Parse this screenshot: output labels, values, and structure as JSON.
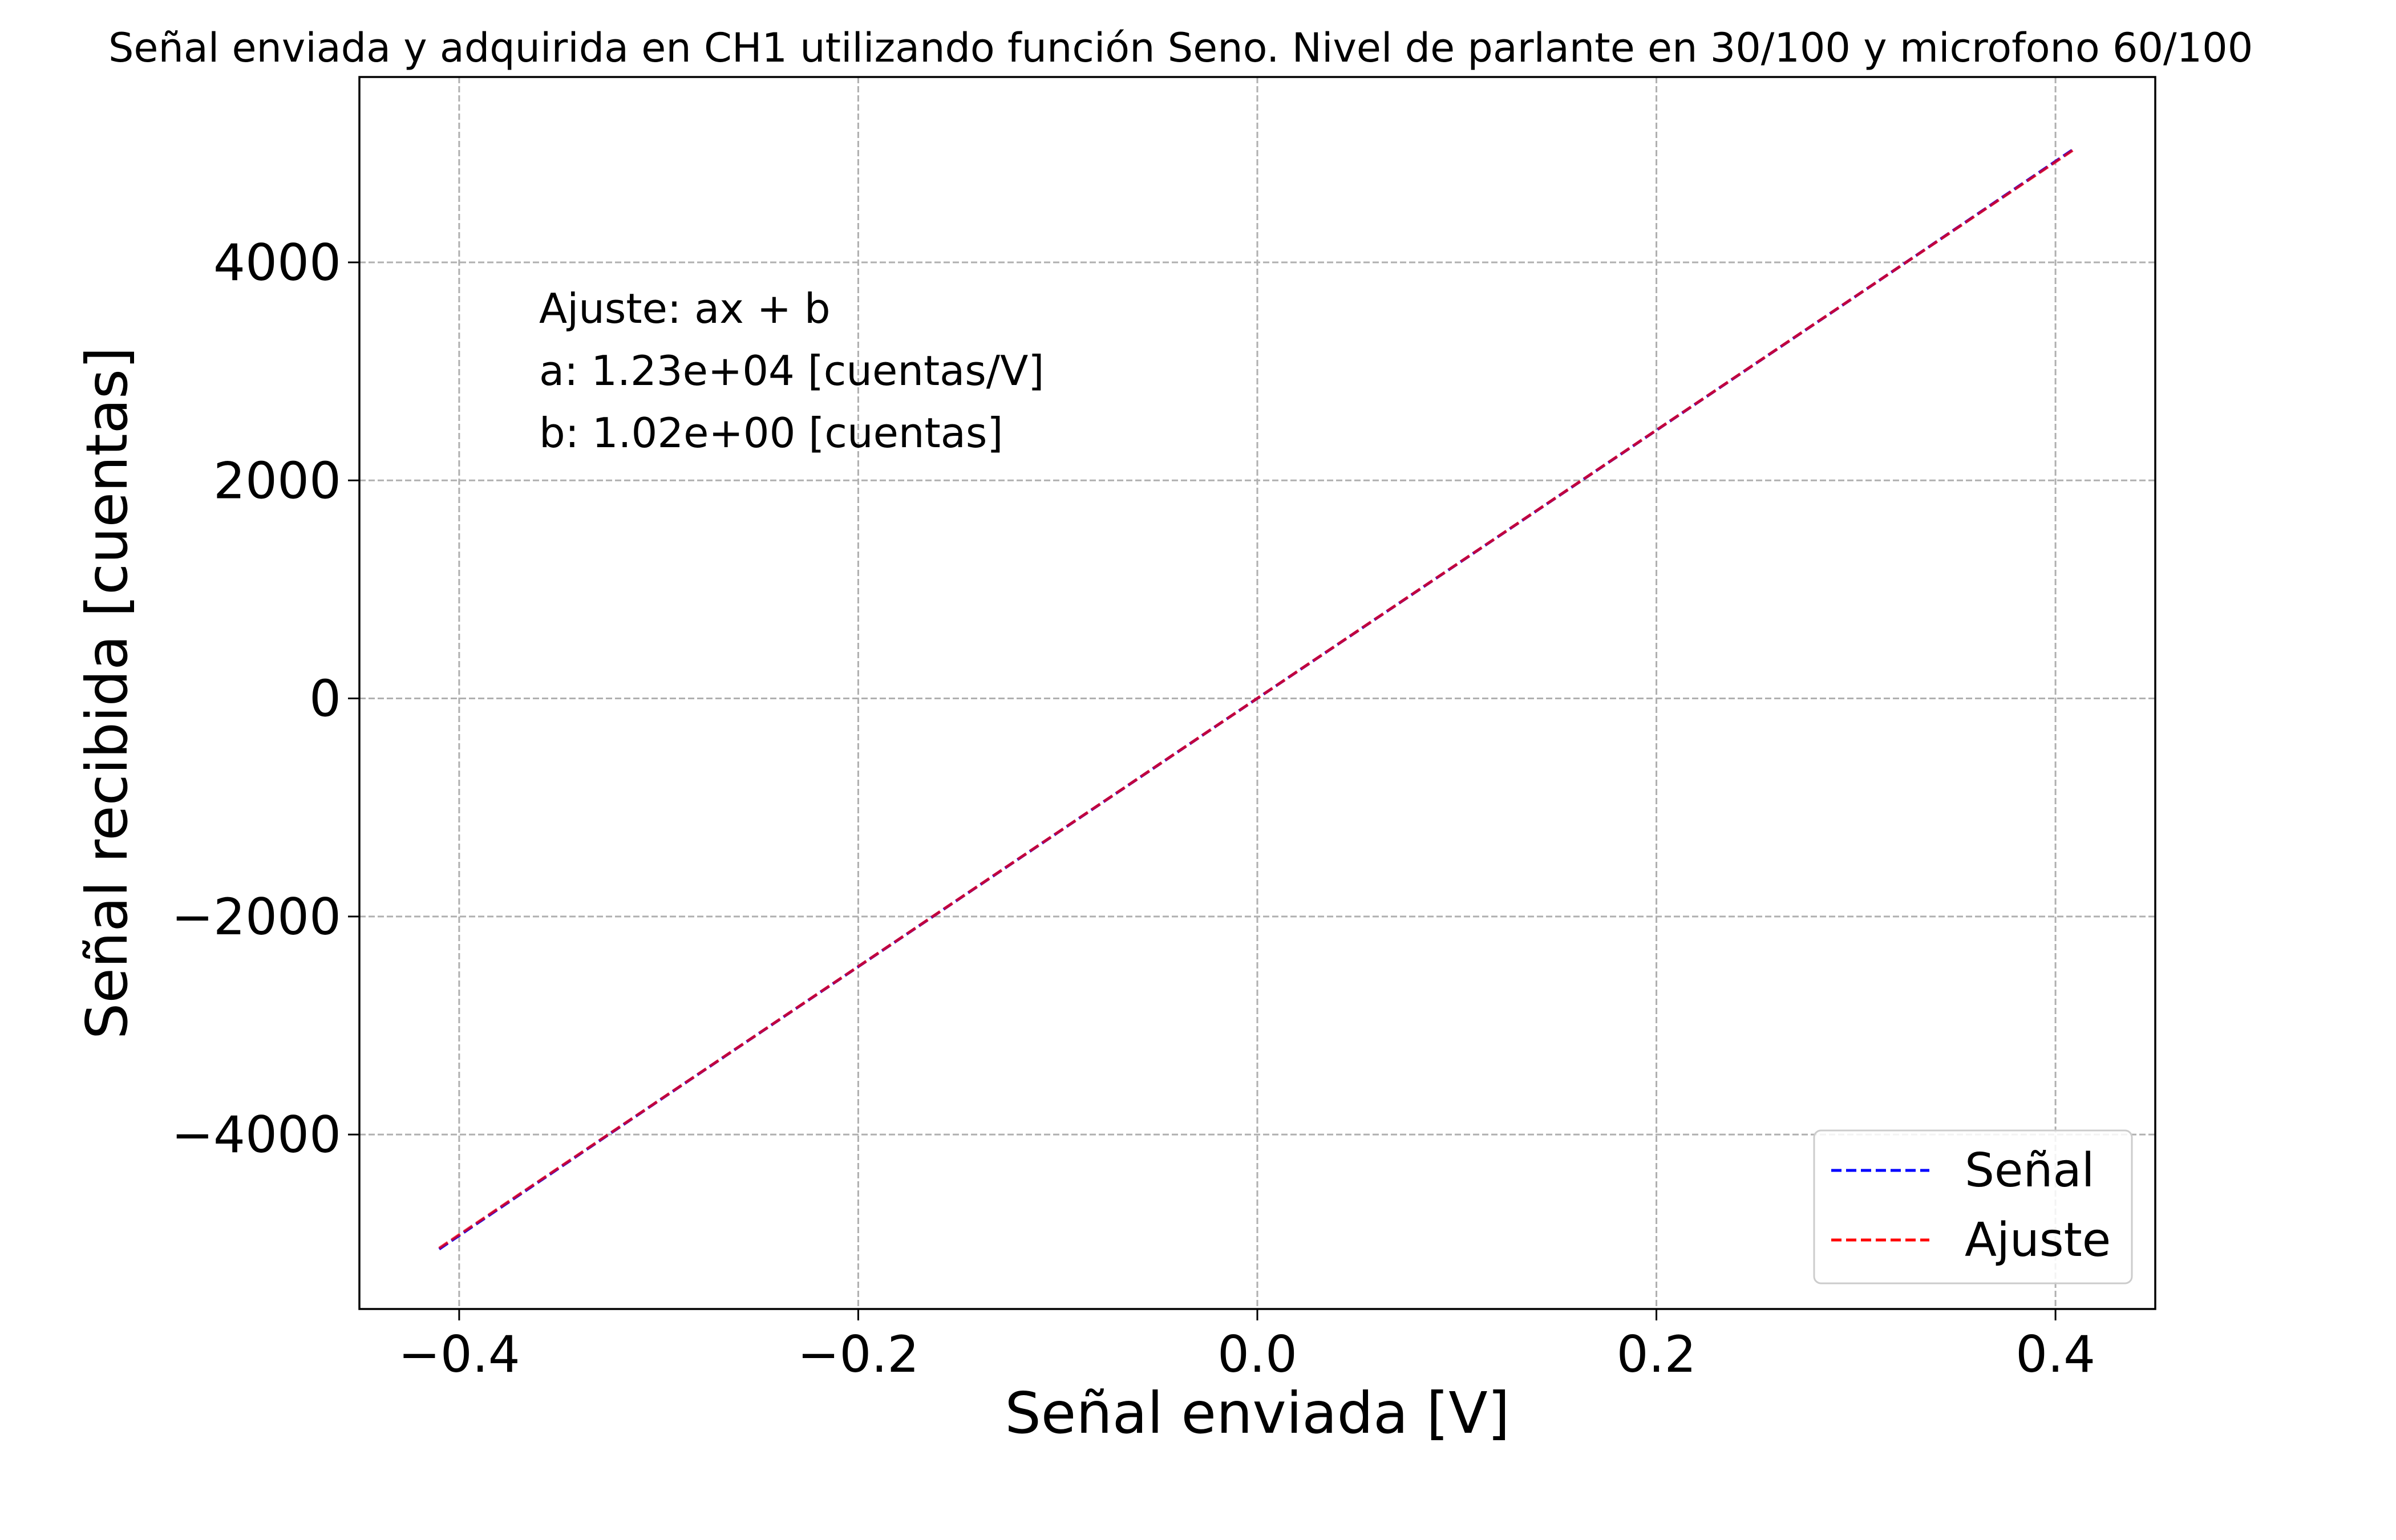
{
  "chart_data": {
    "type": "line",
    "title": "Señal enviada y adquirida en CH1 utilizando función Seno. Nivel de parlante en 30/100 y microfono 60/100",
    "xlabel": "Señal enviada [V]",
    "ylabel": "Señal recibida [cuentas]",
    "xlim": [
      -0.45,
      0.45
    ],
    "ylim": [
      -5600,
      5700
    ],
    "x_ticks": [
      -0.4,
      -0.2,
      0.0,
      0.2,
      0.4
    ],
    "x_tick_labels": [
      "−0.4",
      "−0.2",
      "0.0",
      "0.2",
      "0.4"
    ],
    "y_ticks": [
      -4000,
      -2000,
      0,
      2000,
      4000
    ],
    "y_tick_labels": [
      "−4000",
      "−2000",
      "0",
      "2000",
      "4000"
    ],
    "grid": true,
    "legend_position": "lower-right",
    "series": [
      {
        "name": "Señal",
        "color": "#0000ff",
        "style": "dashed",
        "x": [
          -0.41,
          -0.3,
          -0.2,
          -0.1,
          0.0,
          0.1,
          0.2,
          0.3,
          0.41
        ],
        "y": [
          -5050,
          -3690,
          -2460,
          -1230,
          1,
          1230,
          2460,
          3690,
          5050
        ]
      },
      {
        "name": "Ajuste",
        "color": "#ff0000",
        "style": "dashed",
        "x": [
          -0.41,
          0.41
        ],
        "y": [
          -5042,
          5044
        ]
      }
    ],
    "annotation": {
      "lines": [
        "Ajuste: ax + b",
        "a: 1.23e+04 [cuentas/V]",
        "b: 1.02e+00 [cuentas]"
      ]
    }
  }
}
